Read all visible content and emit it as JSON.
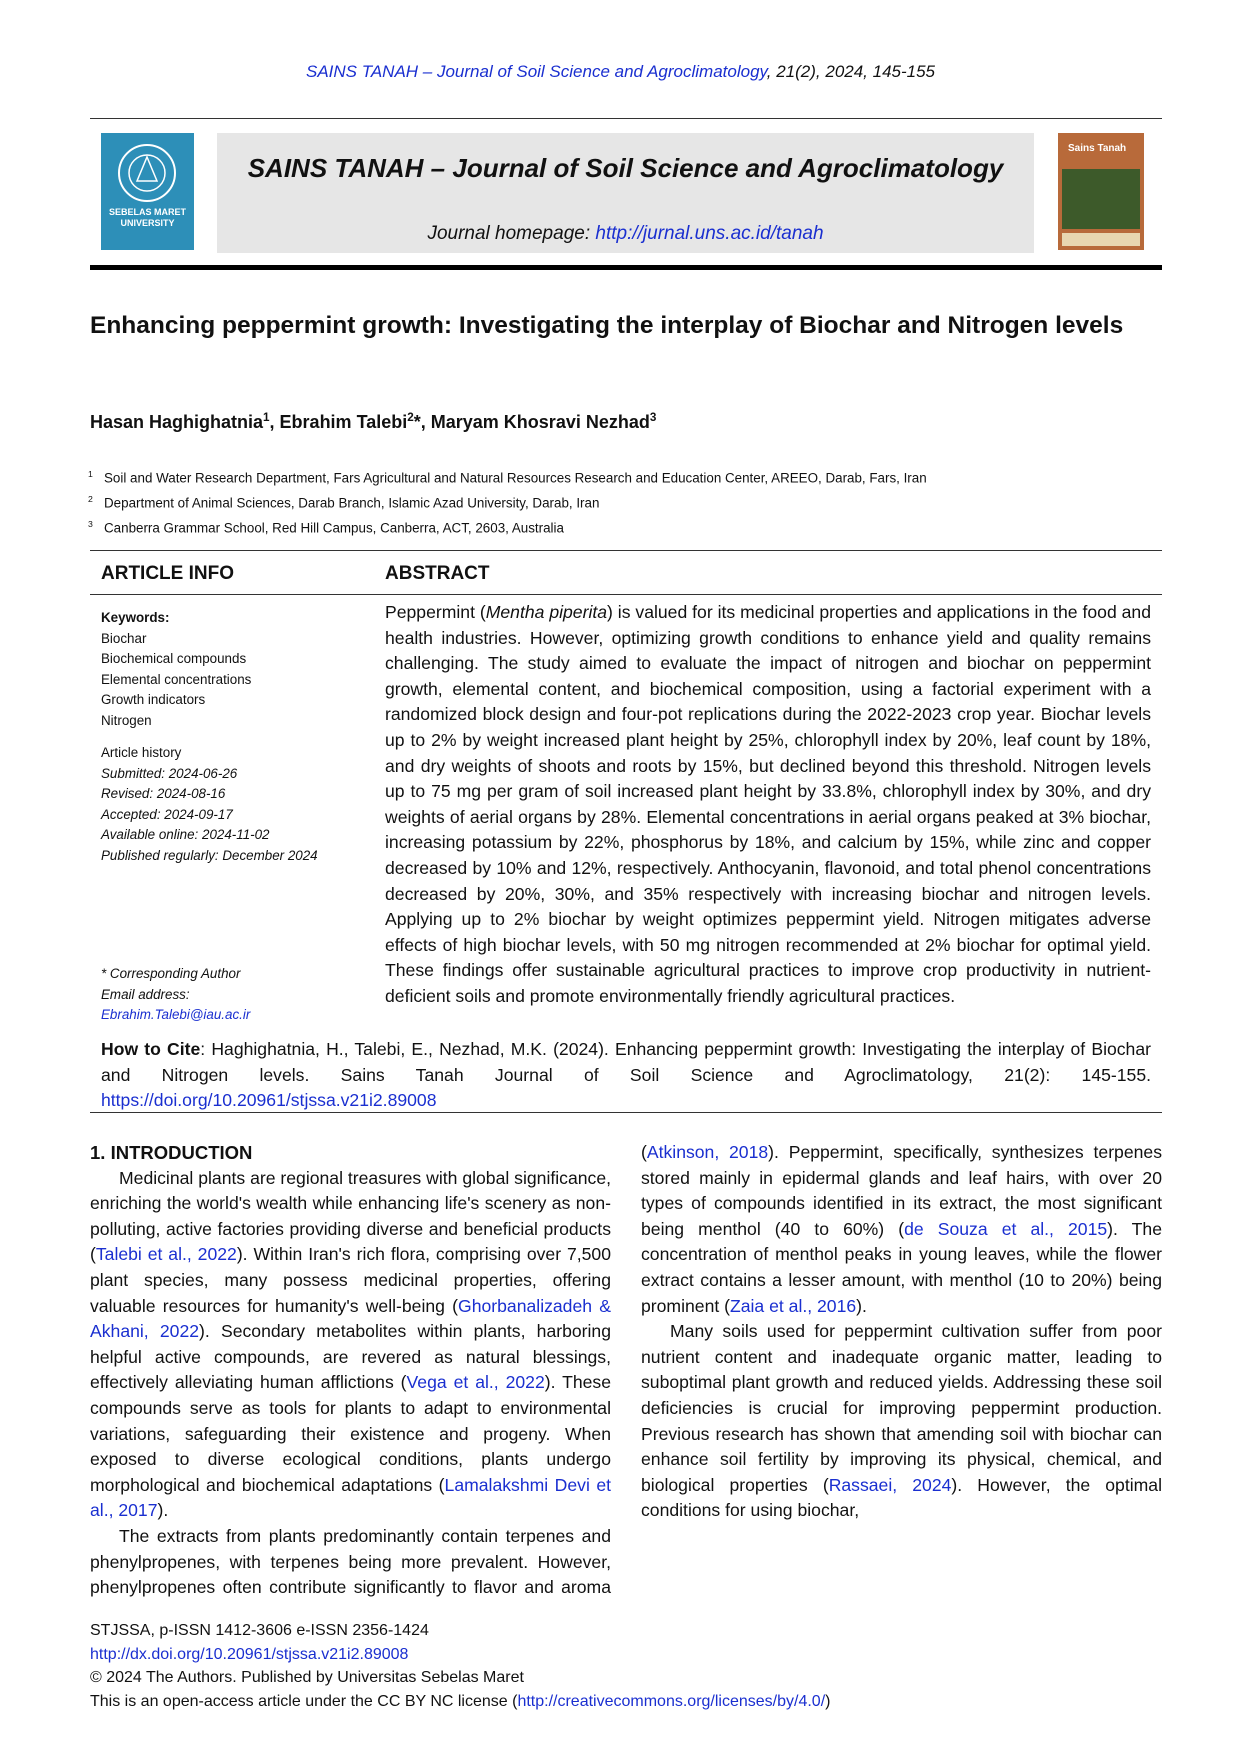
{
  "running_header": [
    {
      "link": "SAINS TANAH – Journal of Soil Science and Agroclimatology"
    },
    ", 21(2), 2024, 145-155"
  ],
  "banner": {
    "logo_text": "SEBELAS MARET UNIVERSITY",
    "journal_title": "SAINS TANAH – Journal of Soil Science and Agroclimatology",
    "homepage": [
      "Journal homepage: ",
      {
        "link": "http://jurnal.uns.ac.id/tanah"
      }
    ],
    "cover_title": "Sains Tanah"
  },
  "article": {
    "title": "Enhancing peppermint growth: Investigating the interplay of Biochar and Nitrogen levels",
    "authors": [
      "Hasan Haghighatnia",
      {
        "sup": "1"
      },
      ", Ebrahim Talebi",
      {
        "sup": "2"
      },
      "*, Maryam Khosravi Nezhad",
      {
        "sup": "3"
      }
    ],
    "affiliations": [
      {
        "number": "1",
        "text": "Soil and Water Research Department, Fars Agricultural and Natural Resources Research and Education Center, AREEO, Darab, Fars, Iran"
      },
      {
        "number": "2",
        "text": "Department of Animal Sciences, Darab Branch, Islamic Azad University, Darab, Iran"
      },
      {
        "number": "3",
        "text": "Canberra Grammar School, Red Hill Campus, Canberra, ACT, 2603, Australia"
      }
    ]
  },
  "article_info": {
    "heading": "ARTICLE INFO",
    "keywords_label": "Keywords:",
    "keywords": [
      "Biochar",
      "Biochemical compounds",
      "Elemental concentrations",
      "Growth indicators",
      "Nitrogen"
    ],
    "history_label": "Article history",
    "history": [
      "Submitted: 2024-06-26",
      "Revised: 2024-08-16",
      "Accepted: 2024-09-17",
      "Available online: 2024-11-02",
      "Published regularly: December 2024"
    ],
    "corresponding_label": "* Corresponding Author",
    "email_label": "Email address:",
    "email": "Ebrahim.Talebi@iau.ac.ir"
  },
  "abstract": {
    "heading": "ABSTRACT",
    "text": [
      "Peppermint (",
      {
        "italic": "Mentha piperita"
      },
      ") is valued for its medicinal properties and applications in the food and health industries. However, optimizing growth conditions to enhance yield and quality remains challenging. The study aimed to evaluate the impact of nitrogen and biochar on peppermint growth, elemental content, and biochemical composition, using a factorial experiment with a randomized block design and four-pot replications during the 2022-2023 crop year. Biochar levels up to 2% by weight increased plant height by 25%, chlorophyll index by 20%, leaf count by 18%, and dry weights of shoots and roots by 15%, but declined beyond this threshold. Nitrogen levels up to 75 mg per gram of soil increased plant height by 33.8%, chlorophyll index by 30%, and dry weights of aerial organs by 28%. Elemental concentrations in aerial organs peaked at 3% biochar, increasing potassium by 22%, phosphorus by 18%, and calcium by 15%, while zinc and copper decreased by 10% and 12%, respectively. Anthocyanin, flavonoid, and total phenol concentrations decreased by 20%, 30%, and 35% respectively with increasing biochar and nitrogen levels. Applying up to 2% biochar by weight optimizes peppermint yield. Nitrogen mitigates adverse effects of high biochar levels, with 50 mg nitrogen recommended at 2% biochar for optimal yield. These findings offer sustainable agricultural practices to improve crop productivity in nutrient-deficient soils and promote environmentally friendly agricultural practices."
    ]
  },
  "how_to_cite": {
    "label": "How to Cite",
    "text": [
      ": Haghighatnia, H., Talebi, E., Nezhad, M.K. (2024). Enhancing peppermint growth: Investigating the interplay of Biochar and Nitrogen levels. Sains Tanah Journal of Soil Science and Agroclimatology, 21(2): 145-155. ",
      {
        "link": "https://doi.org/10.20961/stjssa.v21i2.89008"
      }
    ]
  },
  "introduction": {
    "heading": "1. INTRODUCTION",
    "paragraphs": [
      [
        "Medicinal plants are regional treasures with global significance, enriching the world's wealth while enhancing life's scenery as non-polluting, active factories providing diverse and beneficial products (",
        {
          "link": "Talebi et al., 2022"
        },
        "). Within Iran's rich flora, comprising over 7,500 plant species, many possess medicinal properties, offering valuable resources for humanity's well-being (",
        {
          "link": "Ghorbanalizadeh & Akhani, 2022"
        },
        "). Secondary metabolites within plants, harboring helpful active compounds, are revered as natural blessings, effectively alleviating human afflictions (",
        {
          "link": "Vega et al., 2022"
        },
        "). These compounds serve as tools for plants to adapt to environmental variations, safeguarding their existence and progeny. When exposed to diverse ecological conditions, plants undergo morphological and biochemical adaptations (",
        {
          "link": "Lamalakshmi Devi et al., 2017"
        },
        ")."
      ],
      [
        "The extracts from plants predominantly contain terpenes and phenylpropenes, with terpenes being more prevalent. However, phenylpropenes often contribute significantly to flavor and aroma (",
        {
          "link": "Atkinson, 2018"
        },
        "). Peppermint, specifically, synthesizes terpenes stored mainly in epidermal glands and leaf hairs, with over 20 types of compounds identified in its extract, the most significant being menthol (40 to 60%) (",
        {
          "link": "de Souza et al., 2015"
        },
        "). The concentration of menthol peaks in young leaves, while the flower extract contains a lesser amount, with menthol (10 to 20%) being prominent (",
        {
          "link": "Zaia et al., 2016"
        },
        ")."
      ],
      [
        "Many soils used for peppermint cultivation suffer from poor nutrient content and inadequate organic matter, leading to suboptimal plant growth and reduced yields. Addressing these soil deficiencies is crucial for improving peppermint production. Previous research has shown that amending soil with biochar can enhance soil fertility by improving its physical, chemical, and biological properties (",
        {
          "link": "Rassaei, 2024"
        },
        "). However, the optimal conditions for using biochar,"
      ]
    ]
  },
  "footer": [
    [
      "STJSSA, p-ISSN 1412-3606 e-ISSN 2356-1424"
    ],
    [
      {
        "link": "http://dx.doi.org/10.20961/stjssa.v21i2.89008"
      }
    ],
    [
      "© 2024 The Authors. Published by Universitas Sebelas Maret"
    ],
    [
      "This is an open-access article under the CC BY NC license (",
      {
        "link": "http://creativecommons.org/licenses/by/4.0/"
      },
      ")"
    ]
  ]
}
